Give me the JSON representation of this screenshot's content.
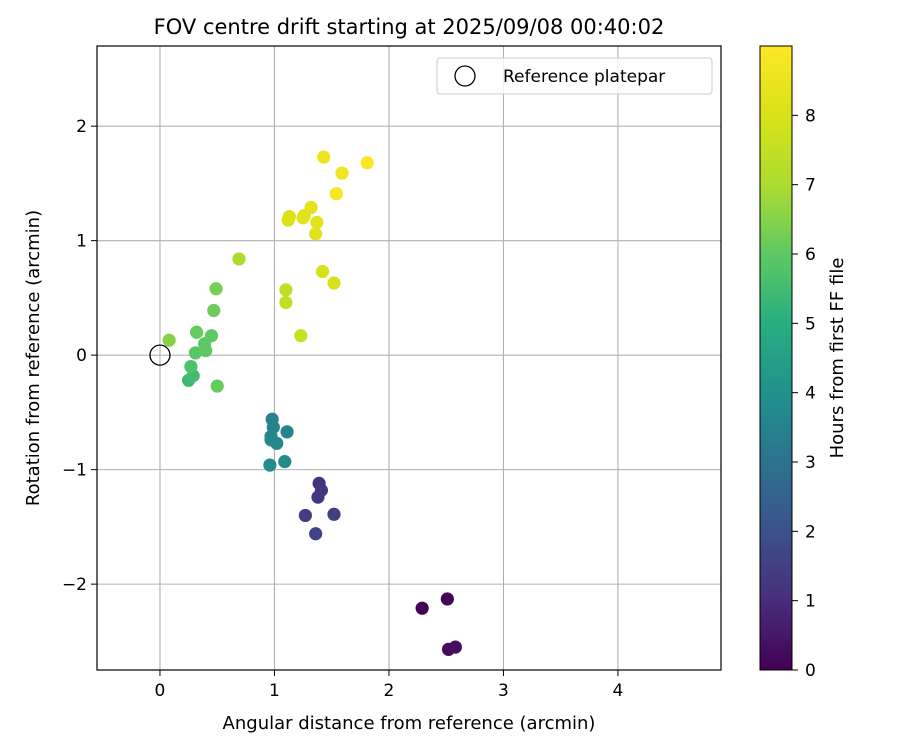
{
  "chart_data": {
    "type": "scatter",
    "title": "FOV centre drift starting at 2025/09/08 00:40:02",
    "xlabel": "Angular distance from reference (arcmin)",
    "ylabel": "Rotation from reference (arcmin)",
    "xlim": [
      -0.55,
      4.9
    ],
    "ylim": [
      -2.75,
      2.7
    ],
    "xticks": [
      0,
      1,
      2,
      3,
      4
    ],
    "xtick_labels": [
      "0",
      "1",
      "2",
      "3",
      "4"
    ],
    "yticks": [
      -2,
      -1,
      0,
      1,
      2
    ],
    "ytick_labels": [
      "−2",
      "−1",
      "0",
      "1",
      "2"
    ],
    "grid": true,
    "legend": {
      "placement": "top-right",
      "label": "Reference platepar"
    },
    "reference_point": {
      "x": 0,
      "y": 0
    },
    "colorbar": {
      "label": "Hours from first FF file",
      "colormap": "viridis",
      "range": [
        0,
        9.0
      ],
      "ticks": [
        0,
        1,
        2,
        3,
        4,
        5,
        6,
        7,
        8
      ],
      "tick_labels": [
        "0",
        "1",
        "2",
        "3",
        "4",
        "5",
        "6",
        "7",
        "8"
      ]
    },
    "points": [
      {
        "x": 2.29,
        "y": -2.21,
        "c": 0.0
      },
      {
        "x": 2.51,
        "y": -2.13,
        "c": 0.1
      },
      {
        "x": 2.52,
        "y": -2.57,
        "c": 0.2
      },
      {
        "x": 2.58,
        "y": -2.55,
        "c": 0.3
      },
      {
        "x": 1.39,
        "y": -1.12,
        "c": 1.1
      },
      {
        "x": 1.41,
        "y": -1.18,
        "c": 1.2
      },
      {
        "x": 1.38,
        "y": -1.24,
        "c": 1.3
      },
      {
        "x": 1.27,
        "y": -1.4,
        "c": 1.4
      },
      {
        "x": 1.52,
        "y": -1.39,
        "c": 1.5
      },
      {
        "x": 1.36,
        "y": -1.56,
        "c": 1.6
      },
      {
        "x": 0.98,
        "y": -0.56,
        "c": 3.5
      },
      {
        "x": 0.99,
        "y": -0.63,
        "c": 3.55
      },
      {
        "x": 1.11,
        "y": -0.67,
        "c": 3.6
      },
      {
        "x": 0.97,
        "y": -0.71,
        "c": 3.65
      },
      {
        "x": 0.97,
        "y": -0.74,
        "c": 3.7
      },
      {
        "x": 1.02,
        "y": -0.77,
        "c": 3.75
      },
      {
        "x": 1.09,
        "y": -0.93,
        "c": 3.8
      },
      {
        "x": 0.96,
        "y": -0.96,
        "c": 3.85
      },
      {
        "x": 0.25,
        "y": -0.22,
        "c": 5.4
      },
      {
        "x": 0.29,
        "y": -0.18,
        "c": 5.5
      },
      {
        "x": 0.27,
        "y": -0.1,
        "c": 5.7
      },
      {
        "x": 0.31,
        "y": 0.02,
        "c": 5.9
      },
      {
        "x": 0.4,
        "y": 0.04,
        "c": 6.0
      },
      {
        "x": 0.39,
        "y": 0.1,
        "c": 6.0
      },
      {
        "x": 0.45,
        "y": 0.17,
        "c": 6.0
      },
      {
        "x": 0.32,
        "y": 0.2,
        "c": 6.1
      },
      {
        "x": 0.5,
        "y": -0.27,
        "c": 6.1
      },
      {
        "x": 0.47,
        "y": 0.39,
        "c": 6.2
      },
      {
        "x": 0.49,
        "y": 0.58,
        "c": 6.3
      },
      {
        "x": 0.08,
        "y": 0.13,
        "c": 6.5
      },
      {
        "x": 0.69,
        "y": 0.84,
        "c": 7.0
      },
      {
        "x": 1.1,
        "y": 0.57,
        "c": 7.4
      },
      {
        "x": 1.1,
        "y": 0.46,
        "c": 7.5
      },
      {
        "x": 1.23,
        "y": 0.17,
        "c": 7.6
      },
      {
        "x": 1.42,
        "y": 0.73,
        "c": 7.9
      },
      {
        "x": 1.52,
        "y": 0.63,
        "c": 7.9
      },
      {
        "x": 1.12,
        "y": 1.18,
        "c": 8.1
      },
      {
        "x": 1.13,
        "y": 1.21,
        "c": 8.1
      },
      {
        "x": 1.25,
        "y": 1.2,
        "c": 8.2
      },
      {
        "x": 1.26,
        "y": 1.22,
        "c": 8.2
      },
      {
        "x": 1.32,
        "y": 1.29,
        "c": 8.3
      },
      {
        "x": 1.37,
        "y": 1.16,
        "c": 8.3
      },
      {
        "x": 1.36,
        "y": 1.06,
        "c": 8.3
      },
      {
        "x": 1.43,
        "y": 1.73,
        "c": 8.6
      },
      {
        "x": 1.59,
        "y": 1.59,
        "c": 8.7
      },
      {
        "x": 1.54,
        "y": 1.41,
        "c": 8.8
      },
      {
        "x": 1.81,
        "y": 1.68,
        "c": 9.0
      }
    ]
  }
}
